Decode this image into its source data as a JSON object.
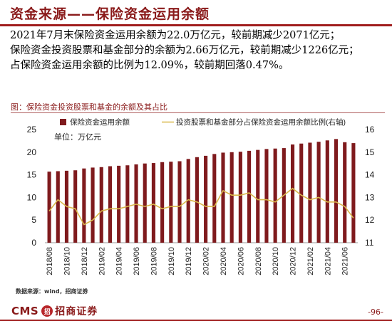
{
  "header": {
    "title": "资金来源——保险资金运用余额"
  },
  "summary": {
    "line1": "2021年7月末保险资金运用余额为22.0万亿元，较前期减少2071亿元；",
    "line2": "保险资金投资股票和基金部分的余额为2.66万亿元，较前期减少1226亿元；",
    "line3": "占保险资金运用余额的比例为12.09%，较前期回落0.47%。"
  },
  "chart_title": "图：保险资金投资股票和基金的余额及其占比",
  "source": "数据来源：wind，招商证券",
  "footer": {
    "logo_text": "CMS",
    "logo_mark": "招",
    "logo_cn": "招商证券",
    "page": "-96-"
  },
  "colors": {
    "accent": "#8a1a1a",
    "bar": "#7f1a1d",
    "line": "#d9b84a"
  },
  "chart_data": {
    "type": "bar+line",
    "unit_label": "单位：万亿元",
    "legend_position": "top",
    "grid": false,
    "categories": [
      "2018/08",
      "2018/09",
      "2018/10",
      "2018/11",
      "2018/12",
      "2019/01",
      "2019/02",
      "2019/03",
      "2019/04",
      "2019/05",
      "2019/06",
      "2019/07",
      "2019/08",
      "2019/09",
      "2019/10",
      "2019/11",
      "2019/12",
      "2020/01",
      "2020/02",
      "2020/03",
      "2020/04",
      "2020/05",
      "2020/06",
      "2020/07",
      "2020/08",
      "2020/09",
      "2020/10",
      "2020/11",
      "2020/12",
      "2021/01",
      "2021/02",
      "2021/03",
      "2021/04",
      "2021/05",
      "2021/06",
      "2021/07"
    ],
    "x_tick_labels": [
      "2018/08",
      "2018/10",
      "2018/12",
      "2019/02",
      "2019/04",
      "2019/06",
      "2019/08",
      "2019/10",
      "2019/12",
      "2020/02",
      "2020/04",
      "2020/06",
      "2020/08",
      "2020/10",
      "2020/12",
      "2021/02",
      "2021/04",
      "2021/06"
    ],
    "series": [
      {
        "name": "保险资金运用余额",
        "type": "bar",
        "axis": "left",
        "values": [
          15.7,
          15.8,
          15.9,
          16.0,
          16.4,
          16.6,
          16.7,
          16.9,
          17.0,
          17.1,
          17.3,
          17.5,
          17.6,
          17.8,
          17.9,
          18.0,
          18.5,
          18.9,
          19.2,
          19.6,
          19.9,
          20.0,
          20.1,
          20.3,
          20.5,
          20.7,
          20.8,
          20.9,
          21.7,
          21.9,
          22.1,
          22.3,
          22.6,
          22.9,
          22.2,
          22.0
        ]
      },
      {
        "name": "投资股票和基金部分占保险资金运用余额比例(右轴)",
        "type": "line",
        "axis": "right",
        "values": [
          12.4,
          12.9,
          12.6,
          12.5,
          11.8,
          12.0,
          12.4,
          12.5,
          12.5,
          12.6,
          12.7,
          12.6,
          12.7,
          12.5,
          12.6,
          12.6,
          12.9,
          12.8,
          12.6,
          12.6,
          13.3,
          13.1,
          13.1,
          13.2,
          12.9,
          12.9,
          12.8,
          13.1,
          13.4,
          13.1,
          12.9,
          13.0,
          12.8,
          12.8,
          12.6,
          12.09
        ]
      }
    ],
    "y_left": {
      "min": 0,
      "max": 25,
      "ticks": [
        0,
        5,
        10,
        15,
        20,
        25
      ]
    },
    "y_right": {
      "min": 11,
      "max": 16,
      "ticks": [
        11,
        12,
        13,
        14,
        15,
        16
      ]
    }
  }
}
